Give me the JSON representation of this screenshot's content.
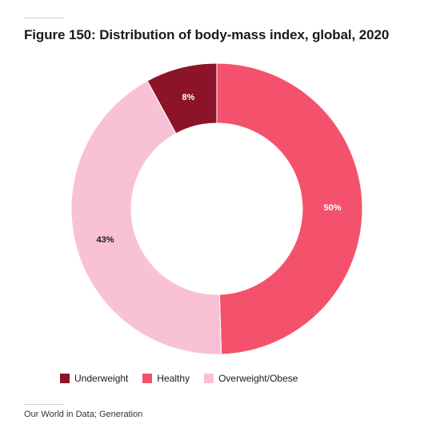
{
  "title": "Figure 150: Distribution of body-mass index, global, 2020",
  "source": "Our World in Data; Generation",
  "chart_data": {
    "type": "pie",
    "donut": true,
    "title": "Figure 150: Distribution of body-mass index, global, 2020",
    "legend_position": "bottom",
    "categories": [
      "Underweight",
      "Healthy",
      "Overweight/Obese"
    ],
    "values": [
      8,
      50,
      43
    ],
    "labels": [
      "8%",
      "50%",
      "43%"
    ],
    "colors": [
      "#8b1428",
      "#f4526c",
      "#f9c1d6"
    ],
    "label_colors": [
      "#ffffff",
      "#ffffff",
      "#1a1a1a"
    ]
  }
}
